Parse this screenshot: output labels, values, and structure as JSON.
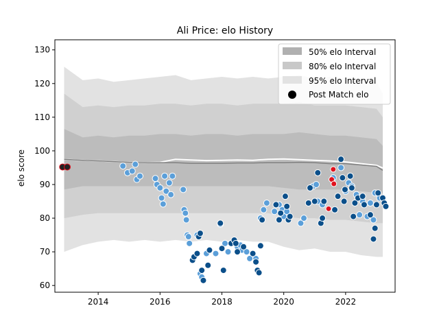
{
  "chart_data": {
    "type": "scatter",
    "title": "Ali Price: elo History",
    "xlabel": "",
    "ylabel": "elo score",
    "xlim": [
      2012.6,
      2023.6
    ],
    "ylim": [
      58,
      133
    ],
    "xticks": [
      2014,
      2016,
      2018,
      2020,
      2022
    ],
    "yticks": [
      60,
      70,
      80,
      90,
      100,
      110,
      120,
      130
    ],
    "grid": false,
    "legend_position": "top-right",
    "legend": [
      {
        "label": "50% elo Interval",
        "color": "#b0b0b0"
      },
      {
        "label": "80% elo Interval",
        "color": "#c8c8c8"
      },
      {
        "label": "95% elo Interval",
        "color": "#e2e2e2"
      },
      {
        "label": "Post Match elo",
        "color": "#000000"
      }
    ],
    "colors": {
      "band95": "#e2e2e2",
      "band80": "#d0d0d0",
      "band50": "#bcbcbc",
      "median": "#808080",
      "mean": "#ffffff",
      "home": "#0b4f8a",
      "away": "#5b9fd9",
      "highlight": "#e0121e",
      "first": "#c0c0c0"
    },
    "bands": {
      "x": [
        2012.9,
        2013.5,
        2014,
        2014.5,
        2015,
        2015.5,
        2016,
        2016.5,
        2017,
        2017.5,
        2018,
        2018.5,
        2019,
        2019.5,
        2020,
        2020.5,
        2021,
        2021.5,
        2022,
        2022.5,
        2023,
        2023.2
      ],
      "p95_upper": [
        125,
        121,
        121.5,
        120.5,
        121,
        121.5,
        122,
        122.5,
        121,
        121.5,
        122,
        121.5,
        122,
        121.5,
        122,
        122.5,
        121.5,
        122,
        121.5,
        121,
        120.5,
        117
      ],
      "p95_lower": [
        70,
        72,
        73,
        73.5,
        73,
        73.5,
        73,
        73.5,
        73,
        73.5,
        73,
        73.5,
        73,
        73,
        71.5,
        70.5,
        71,
        70,
        70,
        69,
        68.5,
        68.5
      ],
      "p80_upper": [
        117,
        113,
        113.5,
        113,
        113.5,
        113.5,
        114,
        114,
        113.5,
        114,
        114,
        113.5,
        114,
        114,
        114,
        114.5,
        113.5,
        113.5,
        113.5,
        113,
        112.5,
        110
      ],
      "p80_lower": [
        80,
        81,
        81.5,
        81.5,
        81.5,
        81.5,
        81.5,
        81.5,
        81.5,
        81.5,
        81.5,
        81.5,
        81.5,
        81.5,
        80.5,
        80,
        80,
        79.5,
        79.5,
        79,
        78.5,
        78.5
      ],
      "p50_upper": [
        106.5,
        104,
        104.5,
        104,
        104.5,
        104.5,
        105,
        105,
        104.5,
        105,
        105,
        104.5,
        105,
        105,
        105,
        105.5,
        105,
        104.5,
        104.5,
        104,
        103.5,
        101.5
      ],
      "p50_lower": [
        88.5,
        89.5,
        89.5,
        89.5,
        89.5,
        89.5,
        89.5,
        89.5,
        89.5,
        89.5,
        89.5,
        89.5,
        89.5,
        89.5,
        89,
        88.5,
        88.5,
        88.5,
        88.5,
        88,
        87.5,
        87.5
      ],
      "median": [
        97.5,
        97.2,
        97,
        96.8,
        96.6,
        96.5,
        96.5,
        96.5,
        96.3,
        96.3,
        96.3,
        96.4,
        96.4,
        96.5,
        96.5,
        96.6,
        96.5,
        96.2,
        96.2,
        95.8,
        95.4,
        94.2
      ],
      "mean": [
        97.5,
        97.2,
        97,
        96.8,
        96.6,
        96.5,
        96.6,
        97.5,
        97.3,
        97.1,
        97.2,
        97.3,
        97.2,
        97.5,
        97.6,
        97.4,
        97.2,
        97.0,
        96.7,
        96.2,
        95.7,
        94.9
      ]
    },
    "points_away": [
      [
        2014.8,
        95.5
      ],
      [
        2014.95,
        93.5
      ],
      [
        2015.1,
        94
      ],
      [
        2015.2,
        96
      ],
      [
        2015.25,
        91.5
      ],
      [
        2015.35,
        92.5
      ],
      [
        2015.85,
        91.8
      ],
      [
        2015.9,
        90
      ],
      [
        2016.0,
        89
      ],
      [
        2016.05,
        86
      ],
      [
        2016.1,
        84.2
      ],
      [
        2016.15,
        92.5
      ],
      [
        2016.2,
        88
      ],
      [
        2016.3,
        90.5
      ],
      [
        2016.35,
        87
      ],
      [
        2016.4,
        92.5
      ],
      [
        2016.75,
        88.5
      ],
      [
        2016.78,
        82.5
      ],
      [
        2016.82,
        81.5
      ],
      [
        2016.85,
        79.5
      ],
      [
        2016.88,
        75
      ],
      [
        2016.92,
        74.5
      ],
      [
        2016.95,
        72.5
      ],
      [
        2017.2,
        75
      ],
      [
        2017.3,
        63.5
      ],
      [
        2017.35,
        62.5
      ],
      [
        2017.5,
        69.5
      ],
      [
        2017.8,
        69.5
      ],
      [
        2017.95,
        78.2
      ],
      [
        2018.1,
        72.5
      ],
      [
        2018.2,
        70
      ],
      [
        2018.5,
        71.5
      ],
      [
        2018.6,
        72
      ],
      [
        2018.65,
        70.5
      ],
      [
        2018.8,
        70
      ],
      [
        2018.9,
        68
      ],
      [
        2019.1,
        68
      ],
      [
        2019.25,
        80
      ],
      [
        2019.35,
        82.5
      ],
      [
        2019.45,
        84.5
      ],
      [
        2019.7,
        82
      ],
      [
        2019.85,
        84
      ],
      [
        2019.95,
        82.5
      ],
      [
        2020.0,
        80.5
      ],
      [
        2020.1,
        82
      ],
      [
        2020.55,
        78.5
      ],
      [
        2020.65,
        80
      ],
      [
        2020.95,
        89.5
      ],
      [
        2021.05,
        90
      ],
      [
        2021.1,
        85
      ],
      [
        2021.25,
        84
      ],
      [
        2021.6,
        92
      ],
      [
        2021.85,
        95
      ],
      [
        2022.0,
        88
      ],
      [
        2022.1,
        90.5
      ],
      [
        2022.2,
        89.5
      ],
      [
        2022.35,
        87
      ],
      [
        2022.45,
        81
      ],
      [
        2022.55,
        85
      ],
      [
        2022.7,
        80.5
      ],
      [
        2022.8,
        84.5
      ],
      [
        2022.9,
        79.5
      ],
      [
        2022.95,
        87.5
      ],
      [
        2023.1,
        86
      ]
    ],
    "points_home": [
      [
        2017.05,
        67.5
      ],
      [
        2017.1,
        68.5
      ],
      [
        2017.2,
        69.5
      ],
      [
        2017.25,
        74.5
      ],
      [
        2017.3,
        75.5
      ],
      [
        2017.35,
        64.5
      ],
      [
        2017.4,
        61.5
      ],
      [
        2017.55,
        66
      ],
      [
        2017.6,
        70.5
      ],
      [
        2017.95,
        78.5
      ],
      [
        2018.0,
        71
      ],
      [
        2018.05,
        64.5
      ],
      [
        2018.3,
        72.5
      ],
      [
        2018.4,
        73.5
      ],
      [
        2018.45,
        72.5
      ],
      [
        2018.5,
        70
      ],
      [
        2018.7,
        71.5
      ],
      [
        2019.0,
        69.5
      ],
      [
        2019.1,
        67
      ],
      [
        2019.15,
        64.5
      ],
      [
        2019.2,
        63.8
      ],
      [
        2019.25,
        71.8
      ],
      [
        2019.3,
        79.5
      ],
      [
        2019.75,
        84
      ],
      [
        2019.85,
        79.5
      ],
      [
        2019.9,
        81.5
      ],
      [
        2020.05,
        86.5
      ],
      [
        2020.1,
        83.5
      ],
      [
        2020.15,
        79.5
      ],
      [
        2020.2,
        80.5
      ],
      [
        2020.8,
        84.5
      ],
      [
        2020.85,
        89
      ],
      [
        2021.0,
        85
      ],
      [
        2021.1,
        93.5
      ],
      [
        2021.2,
        78.5
      ],
      [
        2021.25,
        80
      ],
      [
        2021.3,
        85
      ],
      [
        2021.65,
        82.5
      ],
      [
        2021.75,
        86.5
      ],
      [
        2021.85,
        97.5
      ],
      [
        2021.9,
        92
      ],
      [
        2021.95,
        85
      ],
      [
        2021.98,
        88.5
      ],
      [
        2022.15,
        92.5
      ],
      [
        2022.2,
        89
      ],
      [
        2022.25,
        80.5
      ],
      [
        2022.3,
        84.5
      ],
      [
        2022.4,
        86
      ],
      [
        2022.55,
        86.5
      ],
      [
        2022.6,
        84
      ],
      [
        2022.8,
        81
      ],
      [
        2022.9,
        73.8
      ],
      [
        2022.95,
        77
      ],
      [
        2023.0,
        84
      ],
      [
        2023.05,
        87.5
      ],
      [
        2023.2,
        86
      ],
      [
        2023.25,
        84.5
      ],
      [
        2023.3,
        83.5
      ]
    ],
    "points_highlight": [
      [
        2021.45,
        82.8
      ],
      [
        2021.55,
        91.5
      ],
      [
        2021.6,
        94.5
      ],
      [
        2021.62,
        90.2
      ]
    ],
    "points_first": [
      [
        2012.85,
        95.2
      ],
      [
        2013.0,
        95.2
      ]
    ]
  }
}
